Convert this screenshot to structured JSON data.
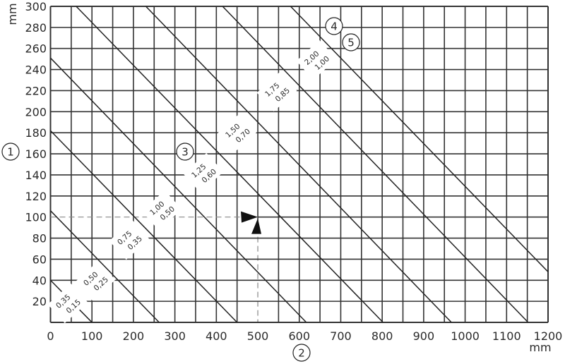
{
  "chart_data": {
    "type": "line",
    "title": "",
    "xlabel": "mm",
    "ylabel": "mm",
    "xlim": [
      0,
      1200
    ],
    "ylim": [
      0,
      300
    ],
    "x_ticks": [
      "0",
      "100",
      "200",
      "300",
      "400",
      "500",
      "600",
      "700",
      "800",
      "900",
      "1000",
      "1100",
      "1200"
    ],
    "y_ticks": [
      "20",
      "40",
      "60",
      "80",
      "100",
      "120",
      "140",
      "160",
      "180",
      "200",
      "220",
      "240",
      "260",
      "280",
      "300"
    ],
    "grid": true,
    "grid_step_x": 50,
    "grid_step_y": 20,
    "series": [
      {
        "label_top": "0,35",
        "label_bottom": "0,15",
        "points": [
          [
            0,
            40
          ],
          [
            100,
            0
          ]
        ]
      },
      {
        "label_top": "0,50",
        "label_bottom": "0,25",
        "points": [
          [
            0,
            106
          ],
          [
            262,
            0
          ]
        ]
      },
      {
        "label_top": "0,75",
        "label_bottom": "0,35",
        "points": [
          [
            0,
            182
          ],
          [
            450,
            0
          ]
        ]
      },
      {
        "label_top": "1,00",
        "label_bottom": "0,50",
        "points": [
          [
            0,
            251
          ],
          [
            617,
            0
          ]
        ]
      },
      {
        "label_top": "1,25",
        "label_bottom": "0,60",
        "points": [
          [
            62,
            300
          ],
          [
            802,
            0
          ]
        ]
      },
      {
        "label_top": "1,50",
        "label_bottom": "0,70",
        "points": [
          [
            230,
            300
          ],
          [
            967,
            0
          ]
        ]
      },
      {
        "label_top": "1,75",
        "label_bottom": "0,85",
        "points": [
          [
            415,
            300
          ],
          [
            1152,
            0
          ]
        ]
      },
      {
        "label_top": "2,00",
        "label_bottom": "1,00",
        "points": [
          [
            579,
            300
          ],
          [
            1200,
            48
          ]
        ]
      }
    ],
    "reading_example": {
      "x": 500,
      "y": 100
    },
    "callouts": [
      "1",
      "2",
      "3",
      "4",
      "5"
    ]
  },
  "colors": {
    "line": "#222222",
    "grid": "#333333",
    "dashed": "#888888"
  }
}
